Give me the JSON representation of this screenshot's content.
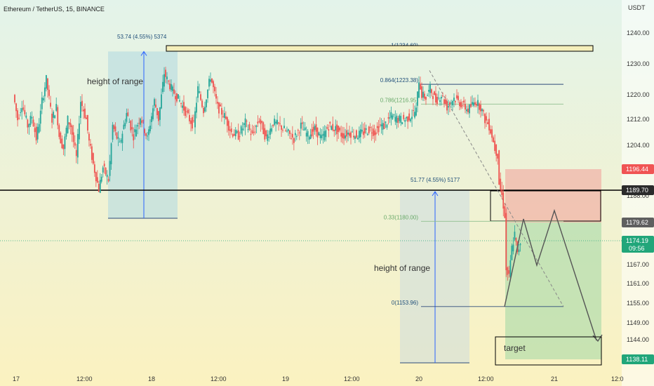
{
  "header": {
    "title": "Ethereum / TetherUS, 15, BINANCE",
    "currency": "USDT"
  },
  "colors": {
    "bg_top": "#e3f3ea",
    "bg_bottom": "#fbf2c0",
    "up": "#26a69a",
    "down": "#ef5350",
    "measure_fill": "#b9dbe0",
    "measure_line": "#2962ff",
    "fib_line": "#2d4a7a",
    "fib_text_blue": "#1f4e79",
    "fib_text_green": "#6aaa6a",
    "loss_zone": "#f28b8b",
    "profit_zone": "#a6d8a6",
    "tag_red": "#f05454",
    "tag_gray": "#5f5f5f",
    "tag_green": "#21a67a",
    "tag_dark": "#2b2b2b"
  },
  "axis": {
    "y_ticks": [
      "1240.00",
      "1230.00",
      "1220.00",
      "1212.00",
      "1204.00",
      "1188.00",
      "1167.00",
      "1161.00",
      "1155.00",
      "1149.00",
      "1144.00"
    ],
    "y_tick_values": [
      1240,
      1230,
      1220,
      1212,
      1204,
      1188,
      1167,
      1161,
      1155,
      1149,
      1144
    ],
    "x_labels": [
      "17",
      "12:00",
      "18",
      "12:00",
      "19",
      "12:00",
      "20",
      "12:00",
      "21",
      "12:0"
    ],
    "x_label_values": [
      0,
      48,
      96,
      144,
      192,
      240,
      288,
      336,
      384,
      432
    ]
  },
  "price_tags": [
    {
      "label": "1196.44",
      "value": 1196.44,
      "color": "tag_red"
    },
    {
      "label": "1189.70",
      "value": 1189.7,
      "color": "tag_dark"
    },
    {
      "label": "1179.62",
      "value": 1179.62,
      "color": "tag_gray"
    },
    {
      "label": "1174.19",
      "sub": "09:56",
      "value": 1174.19,
      "color": "tag_green"
    },
    {
      "label": "1138.11",
      "value": 1138.11,
      "color": "tag_green"
    }
  ],
  "annotations": {
    "measure1_label": "53.74 (4.55%) 5374",
    "measure2_label": "51.77 (4.55%) 5177",
    "height_of_range_1": "height of range",
    "height_of_range_2": "height of range",
    "target": "target"
  },
  "fib_levels": [
    {
      "label": "1(1234.69)",
      "value": 1234.69
    },
    {
      "label": "0.864(1223.38)",
      "value": 1223.38
    },
    {
      "label": "0.786(1216.95)",
      "value": 1216.95
    },
    {
      "label": "0.33(1180.00)",
      "value": 1180.0
    },
    {
      "label": "0(1153.96)",
      "value": 1153.96
    }
  ],
  "chart_data": {
    "type": "line",
    "title": "Ethereum / TetherUS, 15, BINANCE",
    "xlabel": "",
    "ylabel": "USDT",
    "ylim": [
      1132,
      1246
    ],
    "x_unit": "15-minute bars from start of day 17",
    "grid": false,
    "series": [
      {
        "x": [
          0,
          3,
          6,
          10,
          13,
          16,
          19,
          20,
          23,
          27,
          30,
          32,
          35,
          38,
          40,
          44,
          47,
          51,
          53,
          56,
          60,
          63,
          67,
          70,
          75,
          80,
          85,
          90,
          95,
          100,
          103,
          107,
          112,
          118,
          125,
          128,
          131,
          135,
          140,
          145,
          150,
          155,
          160,
          165,
          170,
          175,
          180,
          185,
          190,
          195,
          200,
          205,
          210,
          215,
          220,
          225,
          230,
          235,
          240,
          245,
          250,
          255,
          258,
          262,
          265,
          270,
          275,
          280,
          284,
          288,
          290,
          292,
          295,
          298,
          302,
          306,
          310,
          315,
          320,
          325,
          330,
          334,
          337,
          340,
          342,
          344,
          346,
          347,
          349,
          351,
          352,
          354,
          356,
          358,
          360,
          362
        ],
        "values": [
          1220,
          1212,
          1217,
          1210,
          1213,
          1206,
          1214,
          1218,
          1225,
          1212,
          1216,
          1207,
          1203,
          1212,
          1210,
          1200,
          1218,
          1212,
          1205,
          1198,
          1190,
          1197,
          1193,
          1210,
          1204,
          1214,
          1207,
          1213,
          1206,
          1218,
          1212,
          1227,
          1222,
          1218,
          1212,
          1210,
          1222,
          1215,
          1226,
          1216,
          1213,
          1208,
          1207,
          1211,
          1207,
          1212,
          1206,
          1211,
          1210,
          1208,
          1206,
          1210,
          1207,
          1209,
          1206,
          1210,
          1209,
          1207,
          1208,
          1207,
          1208,
          1209,
          1208,
          1210,
          1210,
          1213,
          1212,
          1212,
          1213,
          1215,
          1225,
          1220,
          1219,
          1222,
          1218,
          1220,
          1216,
          1219,
          1217,
          1215,
          1218,
          1216,
          1212,
          1210,
          1207,
          1203,
          1201,
          1192,
          1188,
          1182,
          1165,
          1163,
          1172,
          1176,
          1170,
          1174
        ]
      }
    ]
  }
}
